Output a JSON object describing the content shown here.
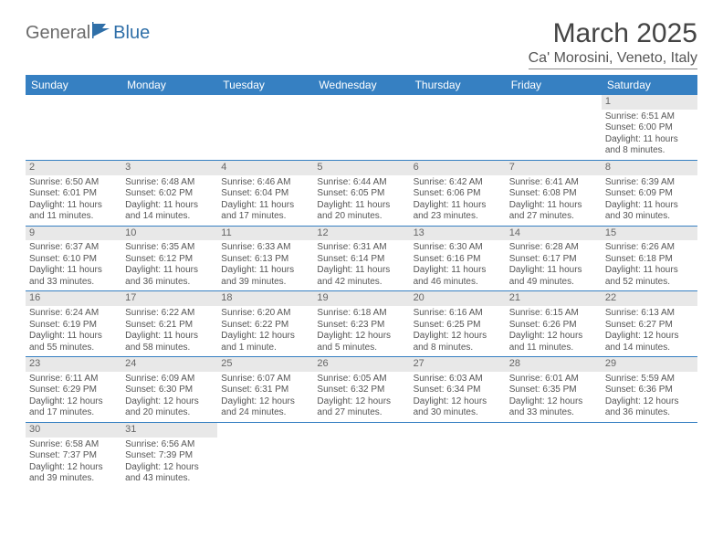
{
  "logo": {
    "part1": "General",
    "part2": "Blue"
  },
  "title": "March 2025",
  "location": "Ca' Morosini, Veneto, Italy",
  "weekdays": [
    "Sunday",
    "Monday",
    "Tuesday",
    "Wednesday",
    "Thursday",
    "Friday",
    "Saturday"
  ],
  "colors": {
    "header_bg": "#3680c2",
    "daynum_bg": "#e8e8e8",
    "page_bg": "#ffffff"
  },
  "firstDayOffset": 6,
  "days": [
    {
      "n": 1,
      "sunrise": "6:51 AM",
      "sunset": "6:00 PM",
      "daylight": "11 hours and 8 minutes."
    },
    {
      "n": 2,
      "sunrise": "6:50 AM",
      "sunset": "6:01 PM",
      "daylight": "11 hours and 11 minutes."
    },
    {
      "n": 3,
      "sunrise": "6:48 AM",
      "sunset": "6:02 PM",
      "daylight": "11 hours and 14 minutes."
    },
    {
      "n": 4,
      "sunrise": "6:46 AM",
      "sunset": "6:04 PM",
      "daylight": "11 hours and 17 minutes."
    },
    {
      "n": 5,
      "sunrise": "6:44 AM",
      "sunset": "6:05 PM",
      "daylight": "11 hours and 20 minutes."
    },
    {
      "n": 6,
      "sunrise": "6:42 AM",
      "sunset": "6:06 PM",
      "daylight": "11 hours and 23 minutes."
    },
    {
      "n": 7,
      "sunrise": "6:41 AM",
      "sunset": "6:08 PM",
      "daylight": "11 hours and 27 minutes."
    },
    {
      "n": 8,
      "sunrise": "6:39 AM",
      "sunset": "6:09 PM",
      "daylight": "11 hours and 30 minutes."
    },
    {
      "n": 9,
      "sunrise": "6:37 AM",
      "sunset": "6:10 PM",
      "daylight": "11 hours and 33 minutes."
    },
    {
      "n": 10,
      "sunrise": "6:35 AM",
      "sunset": "6:12 PM",
      "daylight": "11 hours and 36 minutes."
    },
    {
      "n": 11,
      "sunrise": "6:33 AM",
      "sunset": "6:13 PM",
      "daylight": "11 hours and 39 minutes."
    },
    {
      "n": 12,
      "sunrise": "6:31 AM",
      "sunset": "6:14 PM",
      "daylight": "11 hours and 42 minutes."
    },
    {
      "n": 13,
      "sunrise": "6:30 AM",
      "sunset": "6:16 PM",
      "daylight": "11 hours and 46 minutes."
    },
    {
      "n": 14,
      "sunrise": "6:28 AM",
      "sunset": "6:17 PM",
      "daylight": "11 hours and 49 minutes."
    },
    {
      "n": 15,
      "sunrise": "6:26 AM",
      "sunset": "6:18 PM",
      "daylight": "11 hours and 52 minutes."
    },
    {
      "n": 16,
      "sunrise": "6:24 AM",
      "sunset": "6:19 PM",
      "daylight": "11 hours and 55 minutes."
    },
    {
      "n": 17,
      "sunrise": "6:22 AM",
      "sunset": "6:21 PM",
      "daylight": "11 hours and 58 minutes."
    },
    {
      "n": 18,
      "sunrise": "6:20 AM",
      "sunset": "6:22 PM",
      "daylight": "12 hours and 1 minute."
    },
    {
      "n": 19,
      "sunrise": "6:18 AM",
      "sunset": "6:23 PM",
      "daylight": "12 hours and 5 minutes."
    },
    {
      "n": 20,
      "sunrise": "6:16 AM",
      "sunset": "6:25 PM",
      "daylight": "12 hours and 8 minutes."
    },
    {
      "n": 21,
      "sunrise": "6:15 AM",
      "sunset": "6:26 PM",
      "daylight": "12 hours and 11 minutes."
    },
    {
      "n": 22,
      "sunrise": "6:13 AM",
      "sunset": "6:27 PM",
      "daylight": "12 hours and 14 minutes."
    },
    {
      "n": 23,
      "sunrise": "6:11 AM",
      "sunset": "6:29 PM",
      "daylight": "12 hours and 17 minutes."
    },
    {
      "n": 24,
      "sunrise": "6:09 AM",
      "sunset": "6:30 PM",
      "daylight": "12 hours and 20 minutes."
    },
    {
      "n": 25,
      "sunrise": "6:07 AM",
      "sunset": "6:31 PM",
      "daylight": "12 hours and 24 minutes."
    },
    {
      "n": 26,
      "sunrise": "6:05 AM",
      "sunset": "6:32 PM",
      "daylight": "12 hours and 27 minutes."
    },
    {
      "n": 27,
      "sunrise": "6:03 AM",
      "sunset": "6:34 PM",
      "daylight": "12 hours and 30 minutes."
    },
    {
      "n": 28,
      "sunrise": "6:01 AM",
      "sunset": "6:35 PM",
      "daylight": "12 hours and 33 minutes."
    },
    {
      "n": 29,
      "sunrise": "5:59 AM",
      "sunset": "6:36 PM",
      "daylight": "12 hours and 36 minutes."
    },
    {
      "n": 30,
      "sunrise": "6:58 AM",
      "sunset": "7:37 PM",
      "daylight": "12 hours and 39 minutes."
    },
    {
      "n": 31,
      "sunrise": "6:56 AM",
      "sunset": "7:39 PM",
      "daylight": "12 hours and 43 minutes."
    }
  ],
  "labels": {
    "sunrise": "Sunrise:",
    "sunset": "Sunset:",
    "daylight": "Daylight:"
  }
}
